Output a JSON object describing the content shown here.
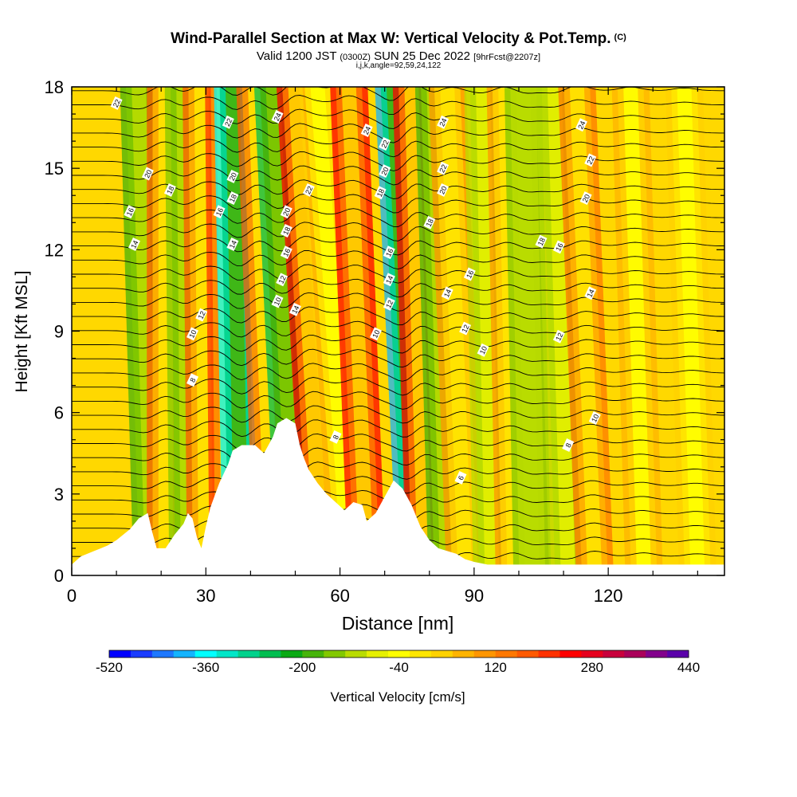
{
  "header": {
    "title": "Wind-Parallel Section at Max W: Vertical Velocity & Pot.Temp.",
    "copyright": "(C)",
    "valid_prefix": "Valid 1200 JST",
    "valid_utc": "(0300Z)",
    "valid_date": "SUN 25 Dec 2022",
    "forecast": "[9hrFcst@2207z]",
    "indices": "i,j,k,angle=92,59,24,122"
  },
  "chart_data": {
    "type": "heatmap",
    "xlabel": "Distance [nm]",
    "ylabel": "Height [Kft MSL]",
    "xlim": [
      0,
      146
    ],
    "ylim": [
      0,
      18
    ],
    "x_ticks": [
      0,
      30,
      60,
      90,
      120
    ],
    "y_ticks": [
      0,
      3,
      6,
      9,
      12,
      15,
      18
    ],
    "colorbar": {
      "label": "Vertical Velocity [cm/s]",
      "tick_labels": [
        "-520",
        "-360",
        "-200",
        "-40",
        "120",
        "280",
        "440"
      ],
      "tick_values": [
        -520,
        -360,
        -200,
        -40,
        120,
        280,
        440
      ],
      "step": 40,
      "colors": [
        "#0000ff",
        "#1a3cff",
        "#1e78ff",
        "#14b4ff",
        "#00ffff",
        "#00e6c8",
        "#00d28c",
        "#00be50",
        "#0aaa14",
        "#46b40a",
        "#82c800",
        "#b9dc00",
        "#e6f000",
        "#ffff00",
        "#ffe600",
        "#ffd200",
        "#ffb400",
        "#ff9600",
        "#ff7800",
        "#ff5a00",
        "#ff3200",
        "#ff0000",
        "#e6001e",
        "#c8003c",
        "#aa005a",
        "#82008c",
        "#5a00aa"
      ]
    },
    "w_bands": [
      {
        "x_bottom": 18,
        "x_top": 15,
        "w": -150
      },
      {
        "x_bottom": 21,
        "x_top": 21,
        "w": 220
      },
      {
        "x_bottom": 26,
        "x_top": 25,
        "w": -140
      },
      {
        "x_bottom": 30,
        "x_top": 29,
        "w": 230
      },
      {
        "x_bottom": 35,
        "x_top": 34,
        "w": 290
      },
      {
        "x_bottom": 38,
        "x_top": 36,
        "w": -380
      },
      {
        "x_bottom": 45,
        "x_top": 41,
        "w": 240
      },
      {
        "x_bottom": 50,
        "x_top": 45,
        "w": -250
      },
      {
        "x_bottom": 56,
        "x_top": 50,
        "w": 330
      },
      {
        "x_bottom": 62,
        "x_top": 55,
        "w": 80
      },
      {
        "x_bottom": 66,
        "x_top": 62,
        "w": 300
      },
      {
        "x_bottom": 77,
        "x_top": 72,
        "w": -400
      },
      {
        "x_bottom": 79,
        "x_top": 76,
        "w": 320
      },
      {
        "x_bottom": 84,
        "x_top": 81,
        "w": -160
      },
      {
        "x_bottom": 88,
        "x_top": 84,
        "w": 170
      },
      {
        "x_bottom": 94,
        "x_top": 92,
        "w": -90
      },
      {
        "x_bottom": 99,
        "x_top": 97,
        "w": 160
      },
      {
        "x_bottom": 103,
        "x_top": 101,
        "w": -110
      },
      {
        "x_bottom": 111,
        "x_top": 108,
        "w": -90
      },
      {
        "x_bottom": 117,
        "x_top": 113,
        "w": 180
      },
      {
        "x_bottom": 128,
        "x_top": 125,
        "w": 120
      },
      {
        "x_bottom": 140,
        "x_top": 137,
        "w": 90
      }
    ],
    "terrain": [
      [
        0,
        0.4
      ],
      [
        2,
        0.7
      ],
      [
        5,
        0.9
      ],
      [
        8,
        1.1
      ],
      [
        10,
        1.3
      ],
      [
        13,
        1.7
      ],
      [
        15,
        2.1
      ],
      [
        17,
        2.3
      ],
      [
        18,
        1.6
      ],
      [
        19,
        1.0
      ],
      [
        21,
        1.0
      ],
      [
        23,
        1.5
      ],
      [
        25,
        1.9
      ],
      [
        26,
        2.3
      ],
      [
        27,
        2.1
      ],
      [
        28,
        1.4
      ],
      [
        29,
        1.0
      ],
      [
        30,
        1.8
      ],
      [
        31,
        2.5
      ],
      [
        33,
        3.4
      ],
      [
        35,
        4.1
      ],
      [
        36,
        4.6
      ],
      [
        38,
        4.8
      ],
      [
        41,
        4.8
      ],
      [
        43,
        4.5
      ],
      [
        45,
        5.1
      ],
      [
        46,
        5.6
      ],
      [
        48,
        5.8
      ],
      [
        50,
        5.6
      ],
      [
        51,
        4.8
      ],
      [
        52,
        4.3
      ],
      [
        53,
        3.9
      ],
      [
        55,
        3.4
      ],
      [
        57,
        3.0
      ],
      [
        59,
        2.7
      ],
      [
        61,
        2.4
      ],
      [
        63,
        2.7
      ],
      [
        65,
        2.6
      ],
      [
        66,
        2.0
      ],
      [
        68,
        2.3
      ],
      [
        70,
        2.9
      ],
      [
        72,
        3.5
      ],
      [
        74,
        3.2
      ],
      [
        76,
        2.6
      ],
      [
        78,
        1.8
      ],
      [
        80,
        1.3
      ],
      [
        82,
        1.0
      ],
      [
        84,
        0.9
      ],
      [
        86,
        0.8
      ],
      [
        88,
        0.6
      ],
      [
        90,
        0.5
      ],
      [
        93,
        0.4
      ],
      [
        146,
        0.4
      ]
    ],
    "contour_labels": [
      {
        "text": "22",
        "x": 10,
        "y": 17.4
      },
      {
        "text": "20",
        "x": 17,
        "y": 14.8
      },
      {
        "text": "18",
        "x": 22,
        "y": 14.2
      },
      {
        "text": "16",
        "x": 13,
        "y": 13.4
      },
      {
        "text": "14",
        "x": 14,
        "y": 12.2
      },
      {
        "text": "22",
        "x": 35,
        "y": 16.7
      },
      {
        "text": "24",
        "x": 46,
        "y": 16.9
      },
      {
        "text": "20",
        "x": 36,
        "y": 14.7
      },
      {
        "text": "18",
        "x": 36,
        "y": 13.9
      },
      {
        "text": "16",
        "x": 33,
        "y": 13.4
      },
      {
        "text": "14",
        "x": 36,
        "y": 12.2
      },
      {
        "text": "22",
        "x": 53,
        "y": 14.2
      },
      {
        "text": "20",
        "x": 48,
        "y": 13.4
      },
      {
        "text": "18",
        "x": 48,
        "y": 12.7
      },
      {
        "text": "16",
        "x": 48,
        "y": 11.9
      },
      {
        "text": "12",
        "x": 47,
        "y": 10.9
      },
      {
        "text": "10",
        "x": 46,
        "y": 10.1
      },
      {
        "text": "14",
        "x": 50,
        "y": 9.8
      },
      {
        "text": "12",
        "x": 29,
        "y": 9.6
      },
      {
        "text": "10",
        "x": 27,
        "y": 8.9
      },
      {
        "text": "8",
        "x": 27,
        "y": 7.2
      },
      {
        "text": "24",
        "x": 66,
        "y": 16.4
      },
      {
        "text": "22",
        "x": 70,
        "y": 15.9
      },
      {
        "text": "20",
        "x": 70,
        "y": 14.9
      },
      {
        "text": "18",
        "x": 69,
        "y": 14.1
      },
      {
        "text": "16",
        "x": 71,
        "y": 11.9
      },
      {
        "text": "14",
        "x": 71,
        "y": 10.9
      },
      {
        "text": "12",
        "x": 71,
        "y": 10.0
      },
      {
        "text": "10",
        "x": 68,
        "y": 8.9
      },
      {
        "text": "24",
        "x": 83,
        "y": 16.7
      },
      {
        "text": "22",
        "x": 83,
        "y": 15.0
      },
      {
        "text": "20",
        "x": 83,
        "y": 14.2
      },
      {
        "text": "18",
        "x": 80,
        "y": 13.0
      },
      {
        "text": "16",
        "x": 89,
        "y": 11.1
      },
      {
        "text": "14",
        "x": 84,
        "y": 10.4
      },
      {
        "text": "12",
        "x": 88,
        "y": 9.1
      },
      {
        "text": "10",
        "x": 92,
        "y": 8.3
      },
      {
        "text": "24",
        "x": 114,
        "y": 16.6
      },
      {
        "text": "22",
        "x": 116,
        "y": 15.3
      },
      {
        "text": "20",
        "x": 115,
        "y": 13.9
      },
      {
        "text": "18",
        "x": 105,
        "y": 12.3
      },
      {
        "text": "16",
        "x": 109,
        "y": 12.1
      },
      {
        "text": "14",
        "x": 116,
        "y": 10.4
      },
      {
        "text": "12",
        "x": 109,
        "y": 8.8
      },
      {
        "text": "10",
        "x": 117,
        "y": 5.8
      },
      {
        "text": "8",
        "x": 111,
        "y": 4.8
      },
      {
        "text": "8",
        "x": 59,
        "y": 5.1
      },
      {
        "text": "6",
        "x": 87,
        "y": 3.6
      }
    ]
  }
}
